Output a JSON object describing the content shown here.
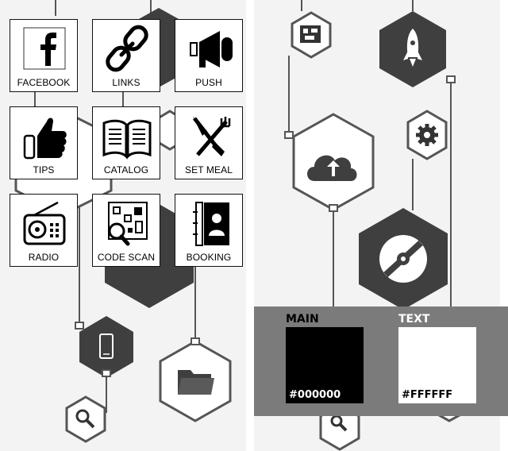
{
  "tiles": [
    {
      "label": "FACEBOOK",
      "icon": "facebook-icon"
    },
    {
      "label": "LINKS",
      "icon": "chain-link-icon"
    },
    {
      "label": "PUSH",
      "icon": "megaphone-icon"
    },
    {
      "label": "TIPS",
      "icon": "thumbs-up-icon"
    },
    {
      "label": "CATALOG",
      "icon": "open-book-icon"
    },
    {
      "label": "SET MEAL",
      "icon": "knife-fork-icon"
    },
    {
      "label": "RADIO",
      "icon": "radio-icon"
    },
    {
      "label": "CODE SCAN",
      "icon": "qr-scan-icon"
    },
    {
      "label": "BOOKING",
      "icon": "contact-book-icon"
    }
  ],
  "colors": {
    "panel_background": "#f3f3f3",
    "hex_dark": "#3f3f3f",
    "hex_outline": "#555555",
    "swatch_bar": "#7b7b7b"
  },
  "swatches": {
    "main": {
      "title": "MAIN",
      "value": "#000000"
    },
    "text": {
      "title": "TEXT",
      "value": "#FFFFFF"
    }
  },
  "background_icons": [
    "smartphone-icon",
    "search-icon",
    "folder-icon",
    "disc-icon",
    "cloud-upload-icon",
    "rocket-icon",
    "gear-icon",
    "qr-code-icon"
  ]
}
